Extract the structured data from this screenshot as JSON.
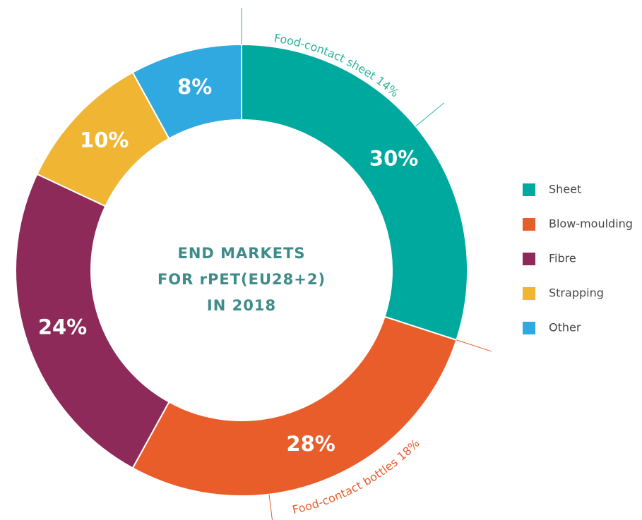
{
  "chart_data": {
    "type": "pie",
    "donut": true,
    "title_lines": [
      "END MARKETS",
      "FOR rPET(EU28+2)",
      "IN 2018"
    ],
    "categories": [
      "Sheet",
      "Blow-moulding",
      "Fibre",
      "Strapping",
      "Other"
    ],
    "values": [
      30,
      28,
      24,
      10,
      8
    ],
    "value_labels": [
      "30%",
      "28%",
      "24%",
      "10%",
      "8%"
    ],
    "colors": [
      "#00a99d",
      "#e95d2b",
      "#8e2a5a",
      "#f0b532",
      "#30a9e0"
    ],
    "annotations": [
      {
        "text": "Food-contact sheet 14%",
        "color": "#2fb39a"
      },
      {
        "text": "Food-contact bottles 18%",
        "color": "#e95d2b"
      }
    ],
    "legend": "right"
  }
}
